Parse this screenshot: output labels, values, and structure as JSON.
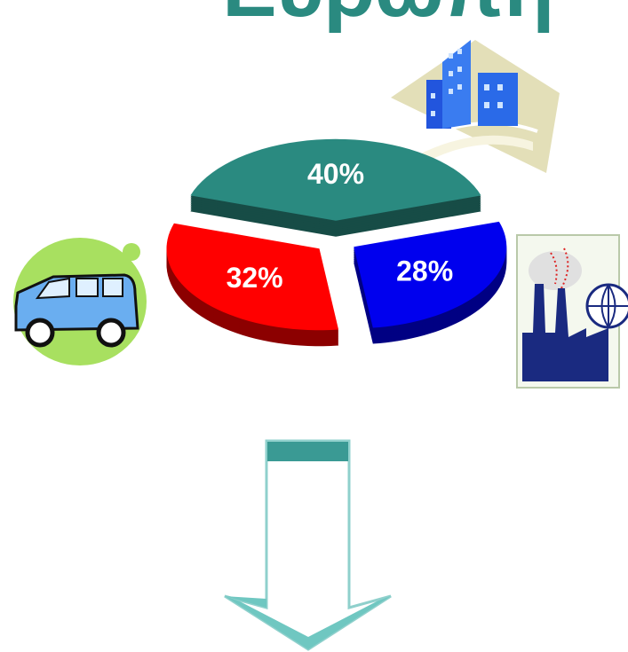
{
  "chart_data": {
    "type": "pie",
    "title": "Ευρώπη",
    "values": [
      40,
      28,
      32
    ],
    "value_labels": [
      "40%",
      "28%",
      "32%"
    ],
    "colors": [
      "#2a8a80",
      "#0000ee",
      "#ff0000"
    ]
  }
}
